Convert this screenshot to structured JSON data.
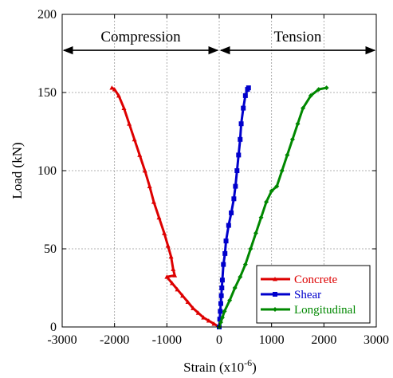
{
  "chart_data": {
    "type": "line",
    "title": "",
    "xlabel": "Strain (x10",
    "xlabel_superscript": "-6",
    "xlabel_suffix": ")",
    "ylabel": "Load (kN)",
    "xlim": [
      -3000,
      3000
    ],
    "ylim": [
      0,
      200
    ],
    "xticks": [
      -3000,
      -2000,
      -1000,
      0,
      1000,
      2000,
      3000
    ],
    "yticks": [
      0,
      50,
      100,
      150,
      200
    ],
    "grid": true,
    "legend_position": "bottom-right",
    "annotations": [
      {
        "text": "Compression",
        "arrow_from_x": -3000,
        "arrow_to_x": 0,
        "y": 177
      },
      {
        "text": "Tension",
        "arrow_from_x": 0,
        "arrow_to_x": 3000,
        "y": 177
      }
    ],
    "series": [
      {
        "name": "Concrete",
        "color": "#dd0000",
        "marker": "triangle",
        "points": [
          [
            0,
            0
          ],
          [
            -100,
            2
          ],
          [
            -200,
            4
          ],
          [
            -300,
            6
          ],
          [
            -400,
            9
          ],
          [
            -500,
            12
          ],
          [
            -600,
            16
          ],
          [
            -700,
            20
          ],
          [
            -800,
            24
          ],
          [
            -900,
            28
          ],
          [
            -1000,
            32
          ],
          [
            -850,
            33
          ],
          [
            -880,
            37
          ],
          [
            -920,
            45
          ],
          [
            -980,
            52
          ],
          [
            -1050,
            60
          ],
          [
            -1150,
            70
          ],
          [
            -1250,
            80
          ],
          [
            -1330,
            90
          ],
          [
            -1420,
            100
          ],
          [
            -1520,
            110
          ],
          [
            -1620,
            120
          ],
          [
            -1720,
            130
          ],
          [
            -1820,
            140
          ],
          [
            -1920,
            148
          ],
          [
            -2000,
            152
          ],
          [
            -2050,
            153
          ]
        ]
      },
      {
        "name": "Shear",
        "color": "#0000cc",
        "marker": "square",
        "points": [
          [
            0,
            0
          ],
          [
            10,
            5
          ],
          [
            20,
            10
          ],
          [
            30,
            15
          ],
          [
            40,
            20
          ],
          [
            50,
            25
          ],
          [
            60,
            30
          ],
          [
            80,
            40
          ],
          [
            110,
            47
          ],
          [
            130,
            55
          ],
          [
            180,
            65
          ],
          [
            230,
            73
          ],
          [
            280,
            82
          ],
          [
            310,
            90
          ],
          [
            340,
            100
          ],
          [
            370,
            110
          ],
          [
            400,
            120
          ],
          [
            420,
            130
          ],
          [
            460,
            140
          ],
          [
            500,
            148
          ],
          [
            540,
            152
          ],
          [
            560,
            153
          ]
        ]
      },
      {
        "name": "Longitudinal",
        "color": "#008800",
        "marker": "diamond",
        "points": [
          [
            0,
            0
          ],
          [
            30,
            3
          ],
          [
            60,
            6
          ],
          [
            100,
            10
          ],
          [
            200,
            17
          ],
          [
            300,
            25
          ],
          [
            400,
            32
          ],
          [
            500,
            40
          ],
          [
            600,
            50
          ],
          [
            700,
            60
          ],
          [
            800,
            70
          ],
          [
            900,
            80
          ],
          [
            1000,
            87
          ],
          [
            1100,
            90
          ],
          [
            1200,
            100
          ],
          [
            1300,
            110
          ],
          [
            1400,
            120
          ],
          [
            1500,
            130
          ],
          [
            1600,
            140
          ],
          [
            1750,
            148
          ],
          [
            1900,
            152
          ],
          [
            2050,
            153
          ]
        ]
      }
    ]
  }
}
